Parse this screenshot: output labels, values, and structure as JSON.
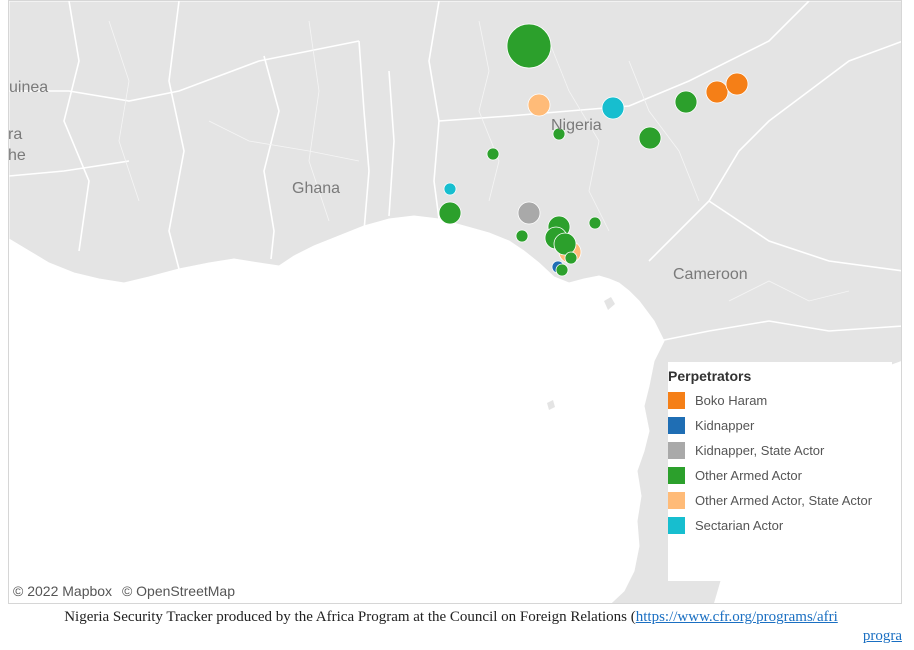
{
  "map": {
    "country_labels": {
      "guinea": "uinea",
      "ghana": "Ghana",
      "nigeria": "Nigeria",
      "cameroon": "Cameroon",
      "edge_ra": "ra",
      "edge_he": "he"
    },
    "attribution": {
      "mapbox": "© 2022 Mapbox",
      "osm": "© OpenStreetMap"
    },
    "colors": {
      "land": "#e4e4e4",
      "sea": "#ffffff",
      "border": "#ffffff"
    }
  },
  "legend": {
    "title": "Perpetrators",
    "items": [
      {
        "label": "Boko Haram",
        "color": "#f57f17"
      },
      {
        "label": "Kidnapper",
        "color": "#1f6eb4"
      },
      {
        "label": "Kidnapper, State Actor",
        "color": "#a9a9a9"
      },
      {
        "label": "Other Armed Actor",
        "color": "#2ca02c"
      },
      {
        "label": "Other Armed Actor, State Actor",
        "color": "#ffbb78"
      },
      {
        "label": "Sectarian Actor",
        "color": "#17becf"
      }
    ]
  },
  "incidents": [
    {
      "category": "Other Armed Actor",
      "size": "large"
    },
    {
      "category": "Other Armed Actor, State Actor",
      "size": "medium"
    },
    {
      "category": "Sectarian Actor",
      "size": "medium"
    },
    {
      "category": "Other Armed Actor",
      "size": "medium"
    },
    {
      "category": "Boko Haram",
      "size": "medium"
    },
    {
      "category": "Boko Haram",
      "size": "medium"
    },
    {
      "category": "Other Armed Actor",
      "size": "medium"
    },
    {
      "category": "Other Armed Actor",
      "size": "small"
    },
    {
      "category": "Other Armed Actor",
      "size": "small"
    },
    {
      "category": "Sectarian Actor",
      "size": "small"
    },
    {
      "category": "Other Armed Actor",
      "size": "medium"
    },
    {
      "category": "Kidnapper, State Actor",
      "size": "medium"
    },
    {
      "category": "Other Armed Actor",
      "size": "medium"
    },
    {
      "category": "Other Armed Actor",
      "size": "medium"
    },
    {
      "category": "Other Armed Actor, State Actor",
      "size": "medium"
    },
    {
      "category": "Other Armed Actor",
      "size": "medium"
    },
    {
      "category": "Other Armed Actor",
      "size": "small"
    },
    {
      "category": "Other Armed Actor",
      "size": "small"
    },
    {
      "category": "Other Armed Actor",
      "size": "small"
    },
    {
      "category": "Kidnapper",
      "size": "small"
    },
    {
      "category": "Other Armed Actor",
      "size": "small"
    }
  ],
  "caption": {
    "text": "Nigeria Security Tracker produced by the Africa Program at the Council on Foreign Relations (",
    "link": "https://www.cfr.org/programs/afri",
    "line2": "progra"
  }
}
